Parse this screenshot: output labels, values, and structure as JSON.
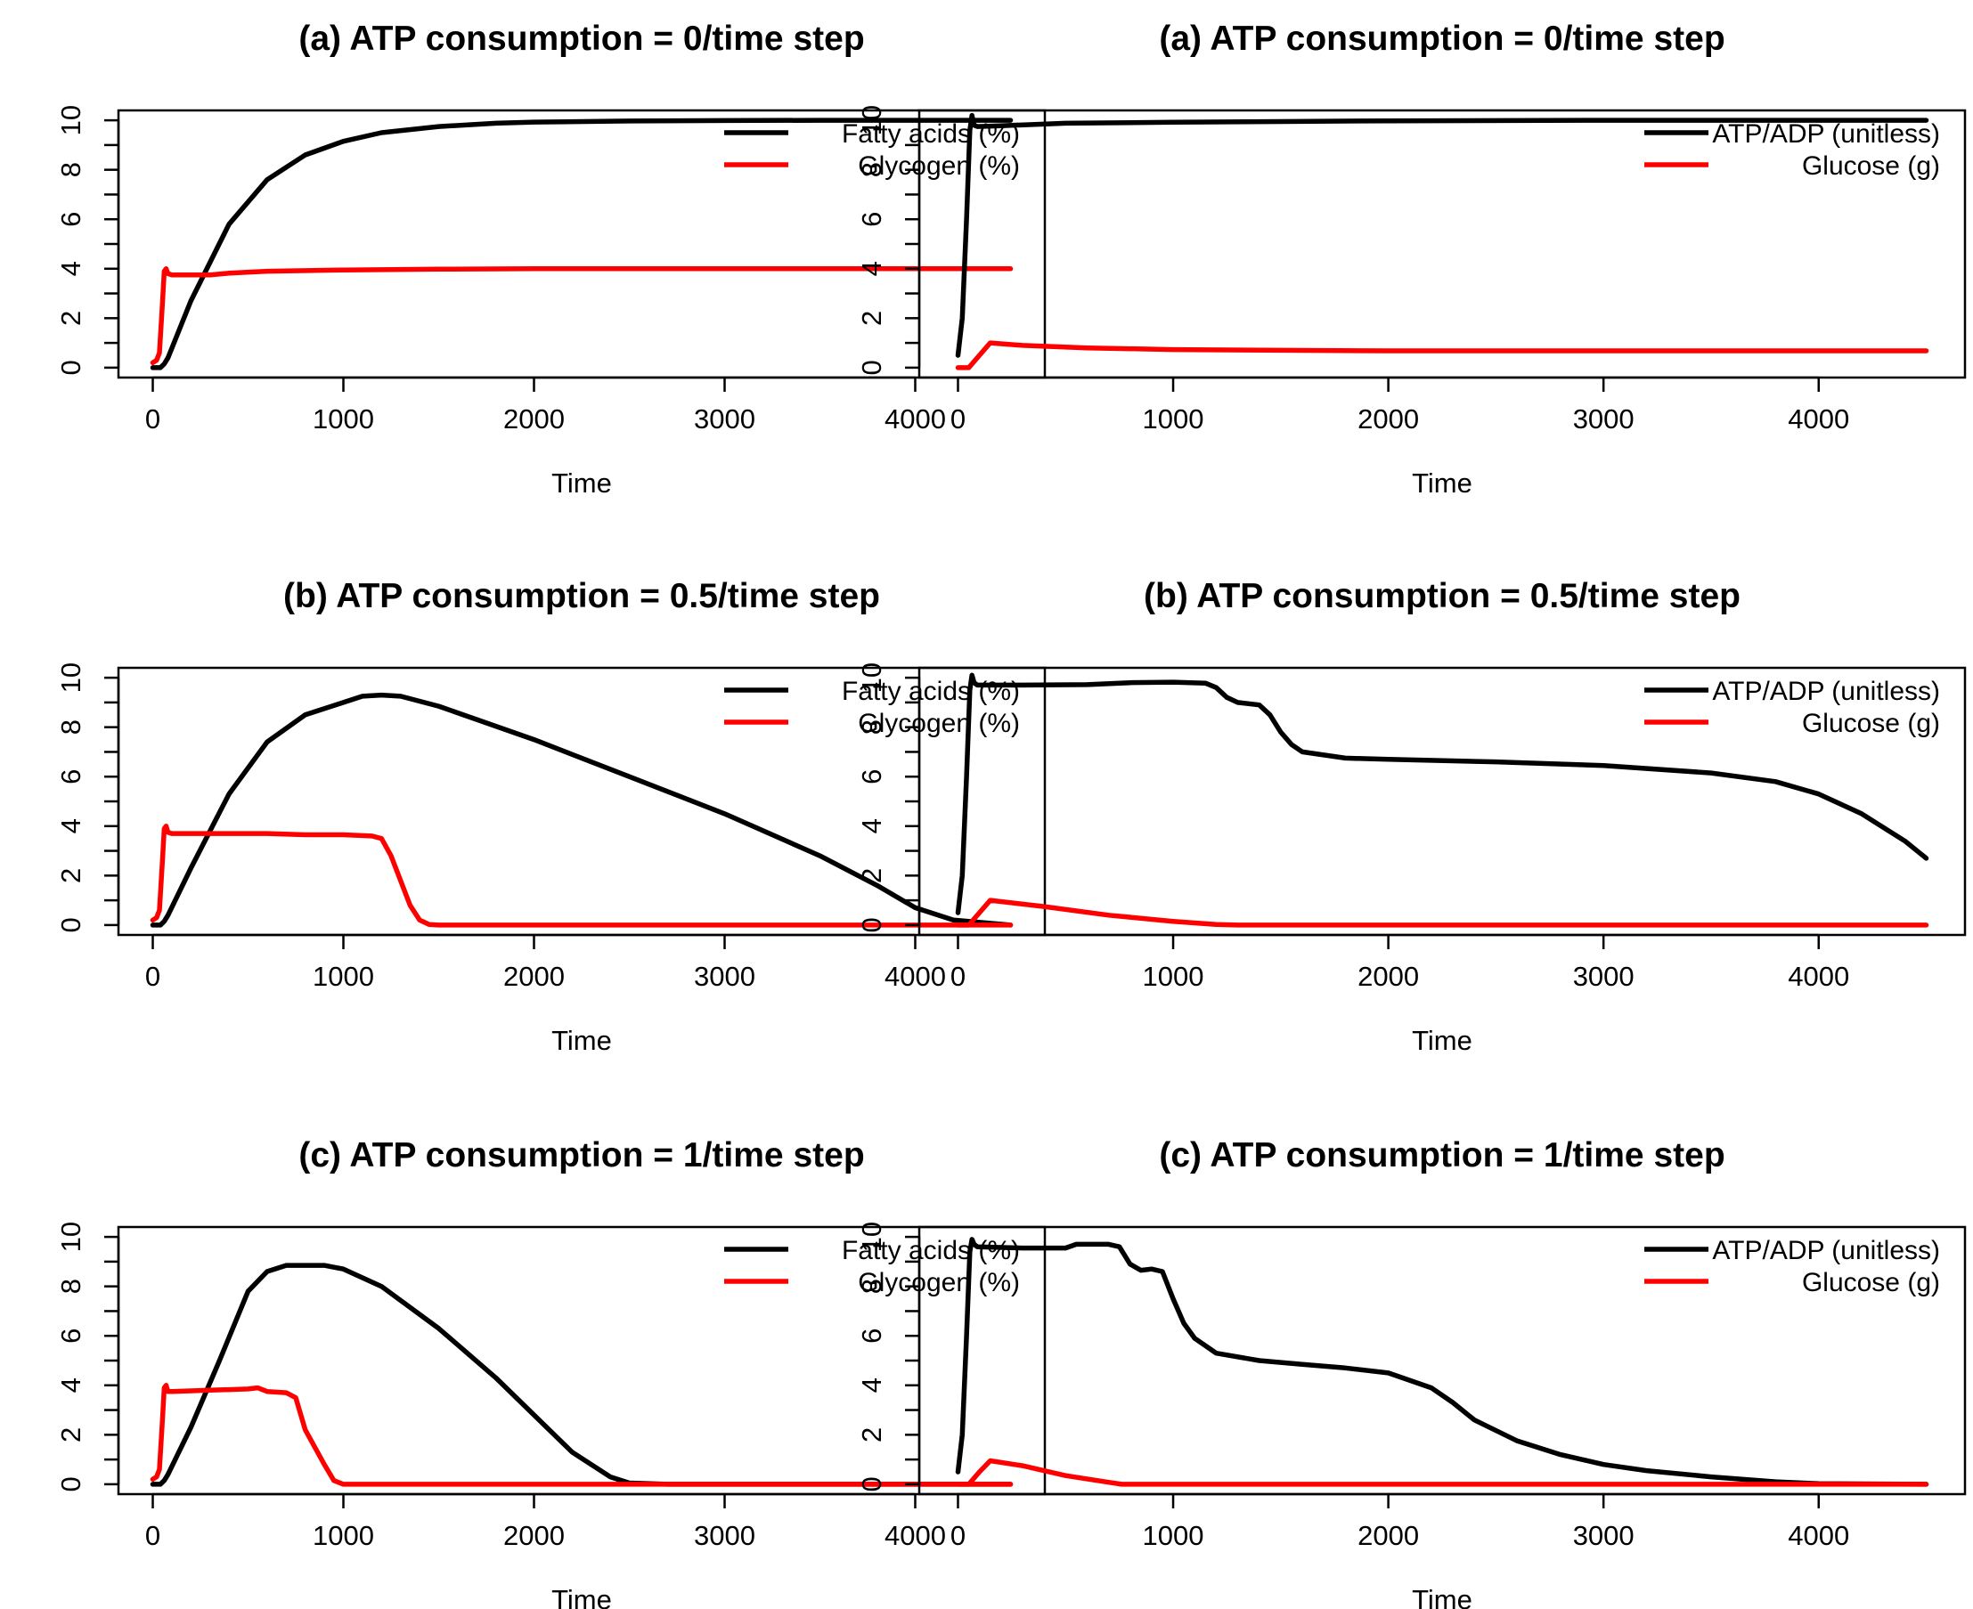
{
  "chart_data": [
    {
      "type": "line",
      "title": "(a) ATP consumption = 0/time step",
      "xlabel": "Time",
      "ylabel": "",
      "xlim": [
        0,
        4500
      ],
      "ylim": [
        0,
        10
      ],
      "xticks": [
        "0",
        "1000",
        "2000",
        "3000",
        "4000"
      ],
      "yticks": [
        "0",
        "2",
        "4",
        "6",
        "8",
        "10"
      ],
      "legend": "top-right",
      "series": [
        {
          "name": "Fatty acids (%)",
          "color": "#000000",
          "x": [
            0,
            40,
            60,
            80,
            200,
            400,
            600,
            800,
            1000,
            1200,
            1500,
            1800,
            2000,
            2500,
            3000,
            3500,
            4000,
            4500
          ],
          "y": [
            0,
            0,
            0.15,
            0.4,
            2.7,
            5.8,
            7.6,
            8.6,
            9.15,
            9.5,
            9.75,
            9.88,
            9.93,
            9.97,
            9.99,
            10,
            10,
            10
          ]
        },
        {
          "name": "Glycogen (%)",
          "color": "#ff0000",
          "x": [
            0,
            20,
            35,
            50,
            60,
            70,
            80,
            100,
            300,
            400,
            600,
            1000,
            1500,
            2000,
            3000,
            4000,
            4500
          ],
          "y": [
            0.2,
            0.3,
            0.6,
            2.5,
            3.9,
            4.0,
            3.8,
            3.75,
            3.75,
            3.82,
            3.9,
            3.95,
            3.98,
            4.0,
            4.0,
            4.0,
            4.0
          ]
        }
      ]
    },
    {
      "type": "line",
      "title": "(a) ATP consumption = 0/time step",
      "xlabel": "Time",
      "ylabel": "",
      "xlim": [
        0,
        4500
      ],
      "ylim": [
        0,
        10
      ],
      "xticks": [
        "0",
        "1000",
        "2000",
        "3000",
        "4000"
      ],
      "yticks": [
        "0",
        "2",
        "4",
        "6",
        "8",
        "10"
      ],
      "legend": "top-right",
      "series": [
        {
          "name": "ATP/ADP (unitless)",
          "color": "#000000",
          "x": [
            0,
            20,
            40,
            55,
            65,
            75,
            90,
            200,
            500,
            1000,
            1500,
            2000,
            3000,
            4000,
            4500
          ],
          "y": [
            0.5,
            2,
            6,
            9.6,
            10.2,
            9.8,
            9.75,
            9.78,
            9.88,
            9.92,
            9.95,
            9.98,
            10,
            10,
            10
          ]
        },
        {
          "name": "Glucose (g)",
          "color": "#ff0000",
          "x": [
            0,
            50,
            100,
            150,
            300,
            600,
            1000,
            1500,
            2000,
            3000,
            4000,
            4500
          ],
          "y": [
            0,
            0,
            0.5,
            1.0,
            0.9,
            0.8,
            0.73,
            0.7,
            0.68,
            0.68,
            0.68,
            0.68
          ]
        }
      ]
    },
    {
      "type": "line",
      "title": "(b) ATP consumption = 0.5/time step",
      "xlabel": "Time",
      "ylabel": "",
      "xlim": [
        0,
        4500
      ],
      "ylim": [
        0,
        10
      ],
      "xticks": [
        "0",
        "1000",
        "2000",
        "3000",
        "4000"
      ],
      "yticks": [
        "0",
        "2",
        "4",
        "6",
        "8",
        "10"
      ],
      "legend": "top-right",
      "series": [
        {
          "name": "Fatty acids (%)",
          "color": "#000000",
          "x": [
            0,
            40,
            60,
            80,
            200,
            400,
            600,
            800,
            1000,
            1100,
            1200,
            1300,
            1500,
            2000,
            2500,
            3000,
            3500,
            3800,
            4000,
            4200,
            4500
          ],
          "y": [
            0,
            0,
            0.15,
            0.4,
            2.3,
            5.3,
            7.4,
            8.5,
            9.0,
            9.25,
            9.3,
            9.25,
            8.85,
            7.5,
            6.0,
            4.5,
            2.8,
            1.6,
            0.7,
            0.2,
            0
          ]
        },
        {
          "name": "Glycogen (%)",
          "color": "#ff0000",
          "x": [
            0,
            20,
            35,
            50,
            60,
            70,
            80,
            100,
            300,
            600,
            800,
            1000,
            1150,
            1200,
            1250,
            1300,
            1350,
            1400,
            1450,
            1500,
            2000,
            3000,
            4000,
            4500
          ],
          "y": [
            0.2,
            0.3,
            0.6,
            2.5,
            3.9,
            4.0,
            3.75,
            3.7,
            3.7,
            3.7,
            3.65,
            3.65,
            3.6,
            3.5,
            2.8,
            1.8,
            0.8,
            0.2,
            0.02,
            0,
            0,
            0,
            0,
            0
          ]
        }
      ]
    },
    {
      "type": "line",
      "title": "(b) ATP consumption = 0.5/time step",
      "xlabel": "Time",
      "ylabel": "",
      "xlim": [
        0,
        4500
      ],
      "ylim": [
        0,
        10
      ],
      "xticks": [
        "0",
        "1000",
        "2000",
        "3000",
        "4000"
      ],
      "yticks": [
        "0",
        "2",
        "4",
        "6",
        "8",
        "10"
      ],
      "legend": "top-right",
      "series": [
        {
          "name": "ATP/ADP (unitless)",
          "color": "#000000",
          "x": [
            0,
            20,
            40,
            55,
            65,
            75,
            90,
            300,
            600,
            800,
            1000,
            1150,
            1200,
            1250,
            1300,
            1400,
            1450,
            1500,
            1550,
            1600,
            1800,
            2000,
            2500,
            3000,
            3500,
            3800,
            4000,
            4200,
            4400,
            4500
          ],
          "y": [
            0.5,
            2,
            6,
            9.5,
            10.1,
            9.8,
            9.7,
            9.7,
            9.72,
            9.8,
            9.82,
            9.78,
            9.6,
            9.2,
            9.0,
            8.9,
            8.5,
            7.8,
            7.3,
            7.0,
            6.75,
            6.7,
            6.6,
            6.45,
            6.15,
            5.8,
            5.3,
            4.5,
            3.4,
            2.7
          ]
        },
        {
          "name": "Glucose (g)",
          "color": "#ff0000",
          "x": [
            0,
            50,
            100,
            150,
            400,
            700,
            1000,
            1200,
            1300,
            2000,
            3000,
            4000,
            4500
          ],
          "y": [
            0,
            0,
            0.5,
            1.0,
            0.75,
            0.4,
            0.15,
            0.02,
            0,
            0,
            0,
            0,
            0
          ]
        }
      ]
    },
    {
      "type": "line",
      "title": "(c) ATP consumption = 1/time step",
      "xlabel": "Time",
      "ylabel": "",
      "xlim": [
        0,
        4500
      ],
      "ylim": [
        0,
        10
      ],
      "xticks": [
        "0",
        "1000",
        "2000",
        "3000",
        "4000"
      ],
      "yticks": [
        "0",
        "2",
        "4",
        "6",
        "8",
        "10"
      ],
      "legend": "top-right",
      "series": [
        {
          "name": "Fatty acids (%)",
          "color": "#000000",
          "x": [
            0,
            40,
            60,
            80,
            200,
            350,
            500,
            600,
            700,
            800,
            900,
            1000,
            1200,
            1500,
            1800,
            2000,
            2200,
            2400,
            2500,
            2700,
            3000,
            4000,
            4500
          ],
          "y": [
            0,
            0,
            0.15,
            0.4,
            2.3,
            5.0,
            7.8,
            8.6,
            8.85,
            8.85,
            8.85,
            8.7,
            8.0,
            6.3,
            4.3,
            2.8,
            1.3,
            0.3,
            0.05,
            0,
            0,
            0,
            0
          ]
        },
        {
          "name": "Glycogen (%)",
          "color": "#ff0000",
          "x": [
            0,
            20,
            35,
            50,
            60,
            70,
            80,
            100,
            300,
            500,
            550,
            600,
            700,
            750,
            800,
            900,
            950,
            1000,
            2000,
            3000,
            4000,
            4500
          ],
          "y": [
            0.2,
            0.3,
            0.6,
            2.5,
            3.9,
            4.0,
            3.75,
            3.75,
            3.8,
            3.85,
            3.9,
            3.75,
            3.7,
            3.5,
            2.2,
            0.8,
            0.15,
            0,
            0,
            0,
            0,
            0
          ]
        }
      ]
    },
    {
      "type": "line",
      "title": "(c) ATP consumption = 1/time step",
      "xlabel": "Time",
      "ylabel": "",
      "xlim": [
        0,
        4500
      ],
      "ylim": [
        0,
        10
      ],
      "xticks": [
        "0",
        "1000",
        "2000",
        "3000",
        "4000"
      ],
      "yticks": [
        "0",
        "2",
        "4",
        "6",
        "8",
        "10"
      ],
      "legend": "top-right",
      "series": [
        {
          "name": "ATP/ADP (unitless)",
          "color": "#000000",
          "x": [
            0,
            20,
            40,
            55,
            65,
            75,
            90,
            300,
            500,
            550,
            600,
            700,
            750,
            800,
            850,
            900,
            950,
            1000,
            1050,
            1100,
            1200,
            1400,
            1600,
            1800,
            2000,
            2200,
            2300,
            2400,
            2600,
            2800,
            3000,
            3200,
            3500,
            3800,
            4000,
            4500
          ],
          "y": [
            0.5,
            2,
            6,
            9.4,
            9.9,
            9.7,
            9.6,
            9.55,
            9.55,
            9.7,
            9.7,
            9.7,
            9.6,
            8.9,
            8.65,
            8.7,
            8.6,
            7.5,
            6.5,
            5.9,
            5.3,
            5.0,
            4.85,
            4.7,
            4.5,
            3.9,
            3.3,
            2.6,
            1.75,
            1.2,
            0.8,
            0.55,
            0.3,
            0.1,
            0.02,
            0
          ]
        },
        {
          "name": "Glucose (g)",
          "color": "#ff0000",
          "x": [
            0,
            50,
            100,
            150,
            300,
            500,
            700,
            760,
            1000,
            2000,
            3000,
            4000,
            4500
          ],
          "y": [
            0,
            0,
            0.5,
            0.95,
            0.75,
            0.35,
            0.08,
            0,
            0,
            0,
            0,
            0,
            0
          ]
        }
      ]
    }
  ]
}
